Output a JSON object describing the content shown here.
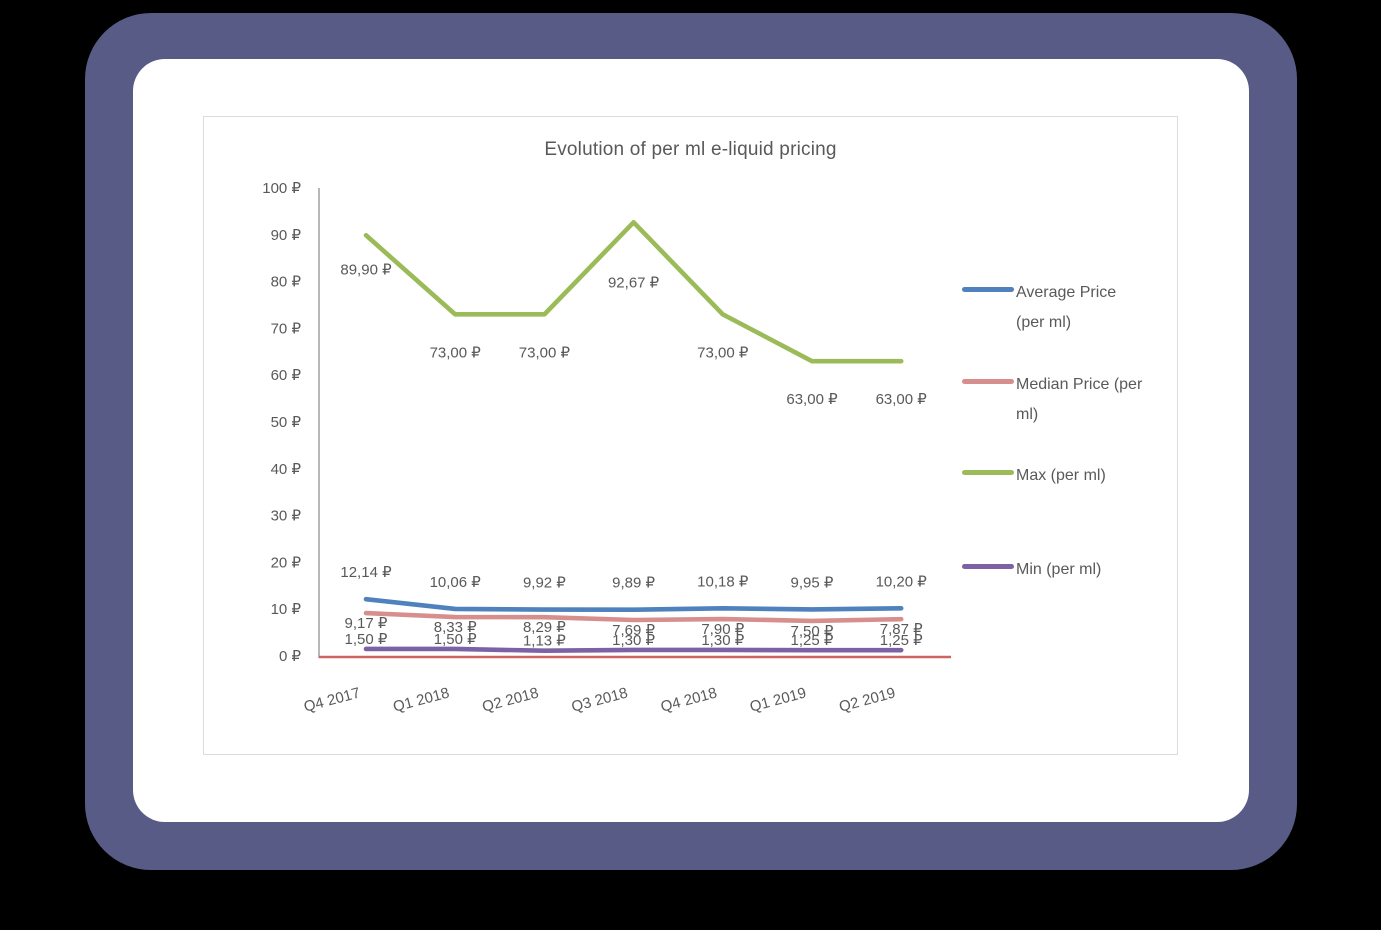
{
  "frame": {
    "outer_background": "#000000",
    "frame_color": "#575b85",
    "card_background": "#ffffff",
    "panel_border_color": "#dcdcdc",
    "text_color": "#595959"
  },
  "chart_data": {
    "type": "line",
    "title": "Evolution of per ml e-liquid pricing",
    "categories": [
      "Q4 2017",
      "Q1 2018",
      "Q2 2018",
      "Q3 2018",
      "Q4 2018",
      "Q1 2019",
      "Q2 2019"
    ],
    "series": [
      {
        "name": "Average Price (per ml)",
        "color": "#4f81bd",
        "values": [
          12.14,
          10.06,
          9.92,
          9.89,
          10.18,
          9.95,
          10.2
        ],
        "labels": [
          "12,14 ₽",
          "10,06 ₽",
          "9,92 ₽",
          "9,89 ₽",
          "10,18 ₽",
          "9,95 ₽",
          "10,20 ₽"
        ],
        "label_dy": -27,
        "label_dy_overrides": {}
      },
      {
        "name": "Median Price (per ml)",
        "color": "#d68f8d",
        "values": [
          9.17,
          8.33,
          8.29,
          7.69,
          7.9,
          7.5,
          7.87
        ],
        "labels": [
          "9,17 ₽",
          "8,33 ₽",
          "8,29 ₽",
          "7,69 ₽",
          "7,90 ₽",
          "7,50 ₽",
          "7,87 ₽"
        ],
        "label_dy": 10,
        "label_dy_overrides": {}
      },
      {
        "name": "Max (per ml)",
        "color": "#9bbb59",
        "values": [
          89.9,
          73.0,
          73.0,
          92.67,
          73.0,
          63.0,
          63.0
        ],
        "labels": [
          "89,90 ₽",
          "73,00 ₽",
          "73,00 ₽",
          "92,67 ₽",
          "73,00 ₽",
          "63,00 ₽",
          "63,00 ₽"
        ],
        "label_dy": 38,
        "label_dy_overrides": {
          "0": 34,
          "3": 60
        }
      },
      {
        "name": "Min (per ml)",
        "color": "#7d61a5",
        "values": [
          1.5,
          1.5,
          1.13,
          1.3,
          1.3,
          1.25,
          1.25
        ],
        "labels": [
          "1,50 ₽",
          "1,50 ₽",
          "1,13 ₽",
          "1,30 ₽",
          "1,30 ₽",
          "1,25 ₽",
          "1,25 ₽"
        ],
        "label_dy": -10,
        "label_dy_overrides": {}
      }
    ],
    "ylim": [
      0,
      100
    ],
    "ytick_step": 10,
    "ytick_suffix": " ₽",
    "grid": false,
    "legend_position": "right",
    "axis_line_color": "#a6a6a6",
    "baseline_color": "#cd6460",
    "xlabel": "",
    "ylabel": ""
  }
}
